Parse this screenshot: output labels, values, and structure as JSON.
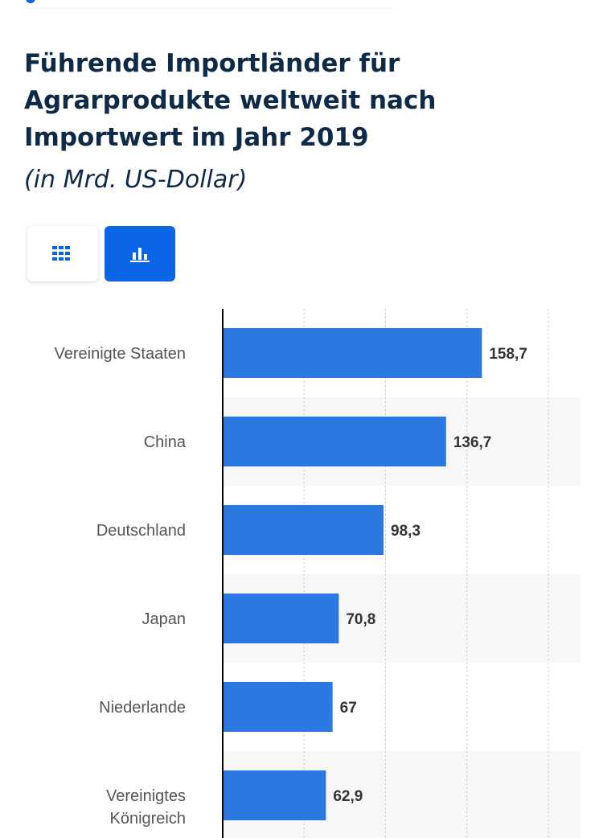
{
  "header": {
    "title": "Führende Importländer für Agrarprodukte weltweit nach Importwert im Jahr 2019",
    "subtitle": "(in Mrd. US-Dollar)"
  },
  "view_toggle": {
    "buttons": [
      {
        "icon": "table-grid-icon",
        "active": false
      },
      {
        "icon": "bar-chart-icon",
        "active": true
      }
    ],
    "active_color": "#0a66e4"
  },
  "colors": {
    "bar": "#2a78e0",
    "title": "#0e2a47",
    "label": "#555555",
    "value": "#333333",
    "band": "#f7f7f7",
    "grid": "#c8c8c8"
  },
  "chart_data": {
    "type": "bar",
    "orientation": "horizontal",
    "categories": [
      "Vereinigte Staaten",
      "China",
      "Deutschland",
      "Japan",
      "Niederlande",
      "Vereinigtes Königreich"
    ],
    "category_lines": [
      [
        "Vereinigte Staaten"
      ],
      [
        "China"
      ],
      [
        "Deutschland"
      ],
      [
        "Japan"
      ],
      [
        "Niederlande"
      ],
      [
        "Vereinigtes",
        "Königreich"
      ]
    ],
    "values": [
      158.7,
      136.7,
      98.3,
      70.8,
      67,
      62.9
    ],
    "value_labels": [
      "158,7",
      "136,7",
      "98,3",
      "70,8",
      "67",
      "62,9"
    ],
    "xlim": [
      0,
      200
    ],
    "grid": true,
    "alternating_bands": true
  }
}
